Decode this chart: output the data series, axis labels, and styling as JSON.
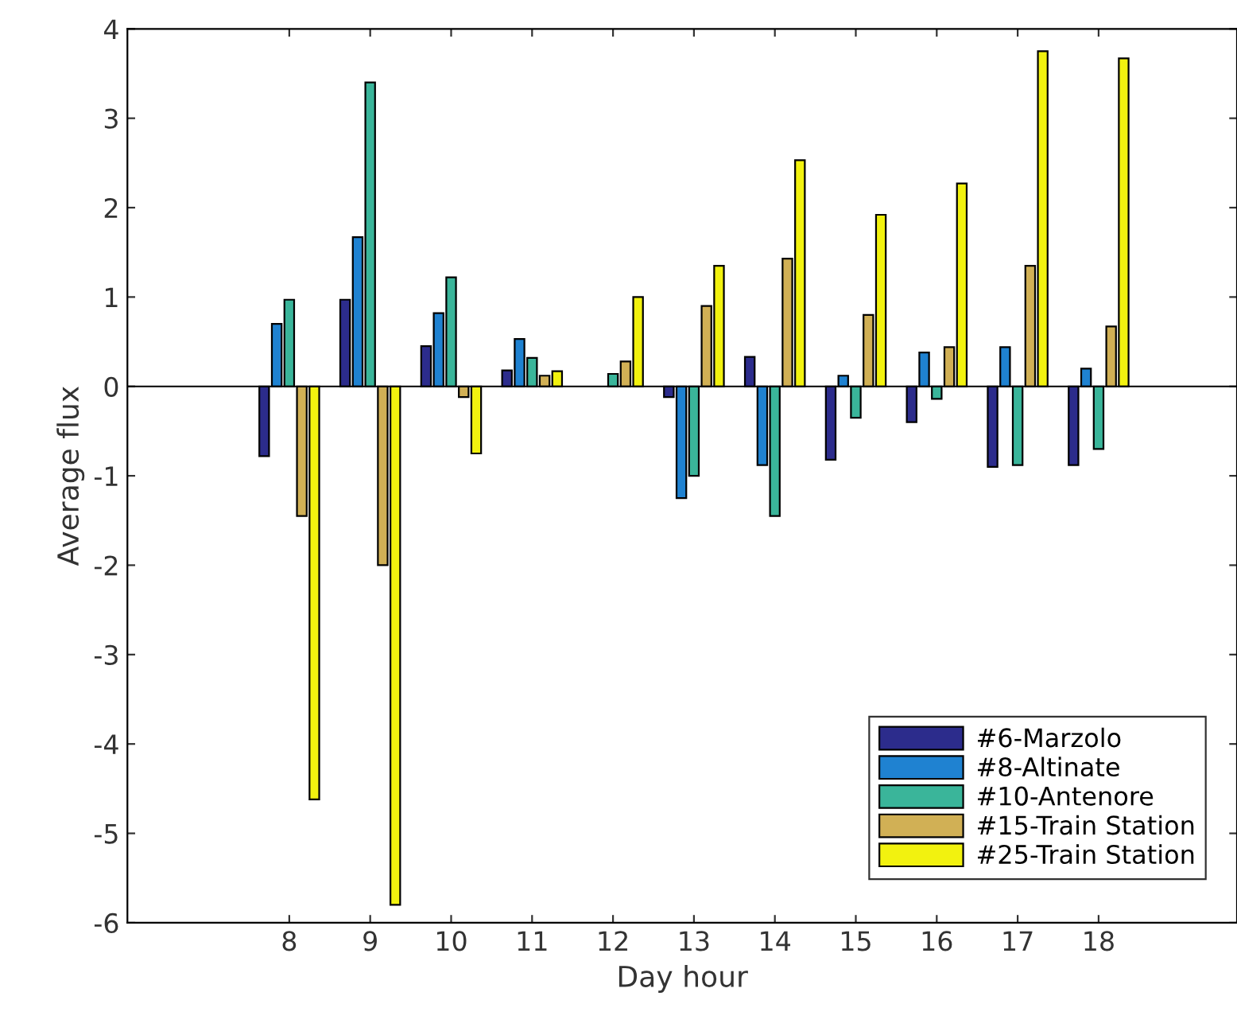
{
  "chart_data": {
    "type": "bar",
    "xlabel": "Day hour",
    "ylabel": "Average flux",
    "x": [
      8,
      9,
      10,
      11,
      12,
      13,
      14,
      15,
      16,
      17,
      18
    ],
    "xlim": [
      6,
      19.71
    ],
    "xticks": [
      8,
      9,
      10,
      11,
      12,
      13,
      14,
      15,
      16,
      17,
      18
    ],
    "ylim": [
      -6,
      4
    ],
    "yticks": [
      -6,
      -5,
      -4,
      -3,
      -2,
      -1,
      0,
      1,
      2,
      3,
      4
    ],
    "grid": false,
    "ref_lines": [
      {
        "axis": "y",
        "value": 0,
        "color": "#000000"
      }
    ],
    "legend": "bottom right",
    "series": [
      {
        "name": "#6-Marzolo",
        "color": "#2c2c8c",
        "values": [
          -0.78,
          0.97,
          0.45,
          0.18,
          null,
          -0.12,
          0.33,
          -0.82,
          -0.4,
          -0.9,
          -0.88
        ]
      },
      {
        "name": "#8-Altinate",
        "color": "#1f82d1",
        "values": [
          0.7,
          1.67,
          0.82,
          0.53,
          null,
          -1.25,
          -0.88,
          0.12,
          0.38,
          0.44,
          0.2
        ]
      },
      {
        "name": "#10-Antenore",
        "color": "#3ab59a",
        "values": [
          0.97,
          3.4,
          1.22,
          0.32,
          0.14,
          -1.0,
          -1.45,
          -0.35,
          -0.14,
          -0.88,
          -0.7
        ]
      },
      {
        "name": "#15-Train Station",
        "color": "#d1b055",
        "values": [
          -1.45,
          -2.0,
          -0.12,
          0.12,
          0.28,
          0.9,
          1.43,
          0.8,
          0.44,
          1.35,
          0.67
        ]
      },
      {
        "name": "#25-Train Station",
        "color": "#f2f20f",
        "values": [
          -4.62,
          -5.8,
          -0.75,
          0.17,
          1.0,
          1.35,
          2.53,
          1.92,
          2.27,
          3.75,
          3.67
        ]
      }
    ]
  }
}
